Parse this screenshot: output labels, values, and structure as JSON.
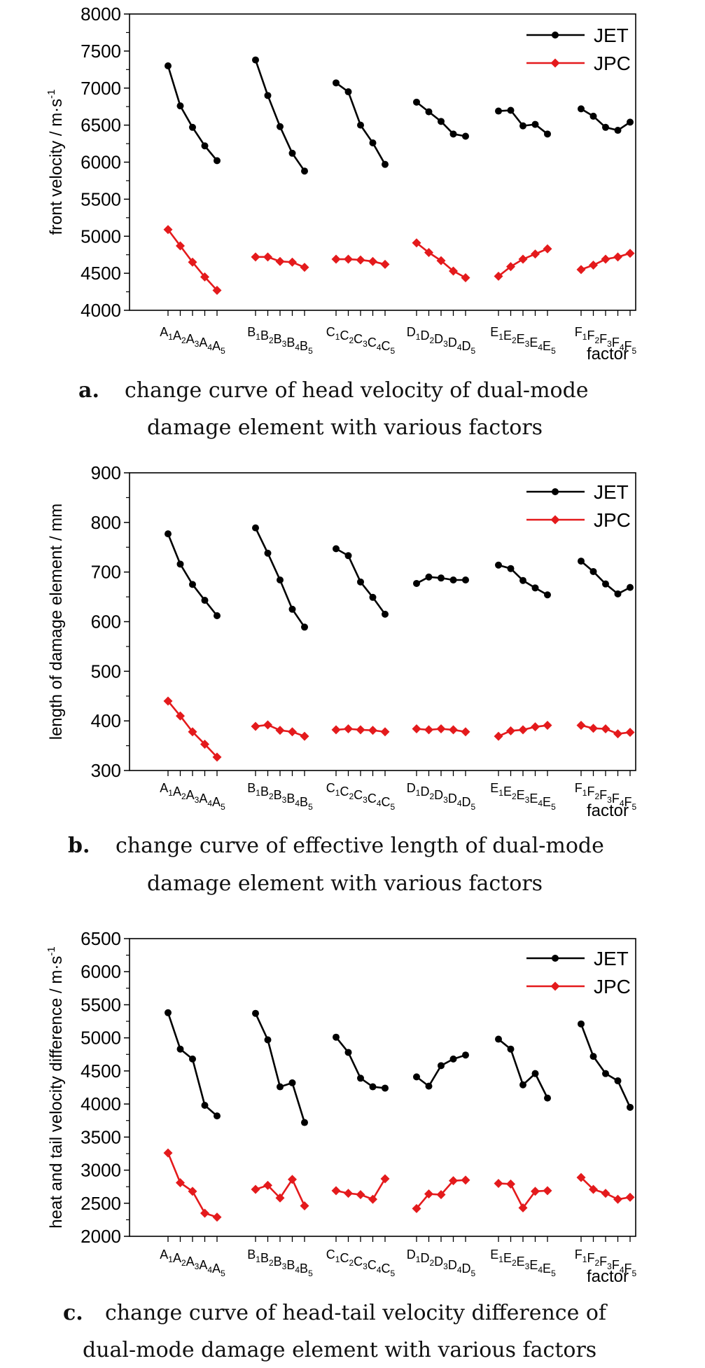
{
  "chart_data": [
    {
      "type": "line",
      "id": "a",
      "caption_letter": "a.",
      "caption_lines": [
        "change curve of head velocity of dual-mode",
        "damage element with various factors"
      ],
      "ylabel": "front velocity / m·s",
      "ylabel_sup": "-1",
      "xlabel": "factor",
      "ylim": [
        4000,
        8000
      ],
      "yticks": [
        4000,
        4500,
        5000,
        5500,
        6000,
        6500,
        7000,
        7500,
        8000
      ],
      "legend": "top-right",
      "groups": [
        "A",
        "B",
        "C",
        "D",
        "E",
        "F"
      ],
      "series": [
        {
          "name": "JET",
          "color": "#000000",
          "marker": "circle",
          "values": [
            [
              7300,
              6760,
              6470,
              6220,
              6020
            ],
            [
              7380,
              6900,
              6480,
              6120,
              5880
            ],
            [
              7070,
              6950,
              6500,
              6260,
              5970
            ],
            [
              6810,
              6680,
              6550,
              6380,
              6350
            ],
            [
              6690,
              6700,
              6490,
              6510,
              6380
            ],
            [
              6720,
              6620,
              6470,
              6430,
              6540
            ]
          ]
        },
        {
          "name": "JPC",
          "color": "#e41a1c",
          "marker": "diamond",
          "values": [
            [
              5090,
              4870,
              4650,
              4450,
              4270
            ],
            [
              4720,
              4720,
              4660,
              4650,
              4580
            ],
            [
              4690,
              4690,
              4680,
              4660,
              4620
            ],
            [
              4910,
              4780,
              4670,
              4530,
              4440
            ],
            [
              4460,
              4590,
              4690,
              4760,
              4830
            ],
            [
              4550,
              4610,
              4690,
              4720,
              4770
            ]
          ]
        }
      ]
    },
    {
      "type": "line",
      "id": "b",
      "caption_letter": "b.",
      "caption_lines": [
        "change curve of effective length of dual-mode",
        "damage element with various factors"
      ],
      "ylabel": "length of damage element / mm",
      "ylabel_sup": "",
      "xlabel": "factor",
      "ylim": [
        300,
        900
      ],
      "yticks": [
        300,
        400,
        500,
        600,
        700,
        800,
        900
      ],
      "legend": "top-right",
      "groups": [
        "A",
        "B",
        "C",
        "D",
        "E",
        "F"
      ],
      "series": [
        {
          "name": "JET",
          "color": "#000000",
          "marker": "circle",
          "values": [
            [
              777,
              716,
              675,
              643,
              612
            ],
            [
              789,
              738,
              684,
              625,
              589
            ],
            [
              747,
              733,
              680,
              649,
              615
            ],
            [
              677,
              690,
              688,
              684,
              684
            ],
            [
              714,
              707,
              683,
              668,
              654
            ],
            [
              722,
              701,
              676,
              656,
              669
            ]
          ]
        },
        {
          "name": "JPC",
          "color": "#e41a1c",
          "marker": "diamond",
          "values": [
            [
              440,
              410,
              378,
              353,
              327
            ],
            [
              389,
              392,
              381,
              378,
              369
            ],
            [
              382,
              384,
              382,
              381,
              378
            ],
            [
              384,
              382,
              384,
              382,
              378
            ],
            [
              369,
              380,
              382,
              388,
              391
            ],
            [
              391,
              385,
              384,
              374,
              377
            ]
          ]
        }
      ]
    },
    {
      "type": "line",
      "id": "c",
      "caption_letter": "c.",
      "caption_lines": [
        "change curve of head-tail velocity difference of",
        "dual-mode damage element with various factors"
      ],
      "ylabel": "heat and tail velocity difference / m·s",
      "ylabel_sup": "-1",
      "xlabel": "factor",
      "ylim": [
        2000,
        6500
      ],
      "yticks": [
        2000,
        2500,
        3000,
        3500,
        4000,
        4500,
        5000,
        5500,
        6000,
        6500
      ],
      "legend": "top-right",
      "groups": [
        "A",
        "B",
        "C",
        "D",
        "E",
        "F"
      ],
      "series": [
        {
          "name": "JET",
          "color": "#000000",
          "marker": "circle",
          "values": [
            [
              5380,
              4830,
              4680,
              3980,
              3820
            ],
            [
              5370,
              4970,
              4260,
              4320,
              3720
            ],
            [
              5010,
              4780,
              4390,
              4260,
              4240
            ],
            [
              4410,
              4270,
              4580,
              4680,
              4740
            ],
            [
              4980,
              4830,
              4290,
              4460,
              4090
            ],
            [
              5210,
              4720,
              4460,
              4350,
              3950
            ]
          ]
        },
        {
          "name": "JPC",
          "color": "#e41a1c",
          "marker": "diamond",
          "values": [
            [
              3260,
              2810,
              2680,
              2350,
              2290
            ],
            [
              2710,
              2770,
              2580,
              2860,
              2460
            ],
            [
              2690,
              2650,
              2630,
              2560,
              2870
            ],
            [
              2420,
              2640,
              2630,
              2840,
              2850
            ],
            [
              2800,
              2790,
              2430,
              2680,
              2690
            ],
            [
              2890,
              2710,
              2650,
              2560,
              2590
            ]
          ]
        }
      ]
    }
  ]
}
